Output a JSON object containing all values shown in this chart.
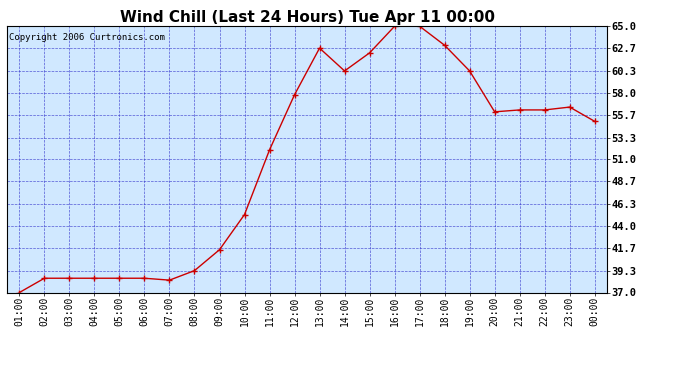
{
  "title": "Wind Chill (Last 24 Hours) Tue Apr 11 00:00",
  "copyright": "Copyright 2006 Curtronics.com",
  "x_labels": [
    "01:00",
    "02:00",
    "03:00",
    "04:00",
    "05:00",
    "06:00",
    "07:00",
    "08:00",
    "09:00",
    "10:00",
    "11:00",
    "12:00",
    "13:00",
    "14:00",
    "15:00",
    "16:00",
    "17:00",
    "18:00",
    "19:00",
    "20:00",
    "21:00",
    "22:00",
    "23:00",
    "00:00"
  ],
  "y_values": [
    37.0,
    38.5,
    38.5,
    38.5,
    38.5,
    38.5,
    38.3,
    39.3,
    41.5,
    45.2,
    52.0,
    57.8,
    62.7,
    60.3,
    62.2,
    65.0,
    65.0,
    63.0,
    60.3,
    56.0,
    56.2,
    56.2,
    56.5,
    55.0
  ],
  "ylim_min": 37.0,
  "ylim_max": 65.0,
  "yticks": [
    37.0,
    39.3,
    41.7,
    44.0,
    46.3,
    48.7,
    51.0,
    53.3,
    55.7,
    58.0,
    60.3,
    62.7,
    65.0
  ],
  "line_color": "#cc0000",
  "marker": "+",
  "bg_color": "#d0e8ff",
  "grid_color": "#3333cc",
  "title_fontsize": 11,
  "copyright_fontsize": 6.5,
  "xtick_fontsize": 7,
  "ytick_fontsize": 7.5
}
